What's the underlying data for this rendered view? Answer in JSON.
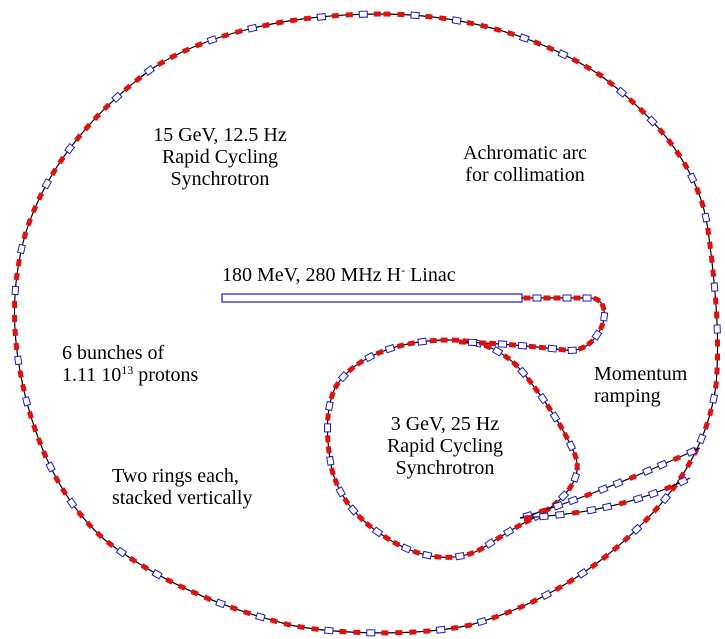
{
  "labels": {
    "rcs15_line1": "15 GeV, 12.5 Hz",
    "rcs15_line2": "Rapid Cycling",
    "rcs15_line3": "Synchrotron",
    "achromatic_line1": "Achromatic arc",
    "achromatic_line2": "for collimation",
    "linac_prefix": "180 MeV, 280 MHz H",
    "linac_sup": "-",
    "linac_suffix": " Linac",
    "bunches_line1": "6 bunches of",
    "bunches_line2_prefix": "1.11 10",
    "bunches_line2_sup": "13",
    "bunches_line2_suffix": " protons",
    "momentum_line1": "Momentum",
    "momentum_line2": "ramping",
    "rcs3_line1": "3 GeV, 25 Hz",
    "rcs3_line2": "Rapid Cycling",
    "rcs3_line3": "Synchrotron",
    "rings_line1": "Two rings each,",
    "rings_line2": "stacked vertically"
  },
  "colors": {
    "beamline": "#000000",
    "dipole_magnet": "#e01010",
    "quadrupole_magnet": "#1a1ad0"
  }
}
